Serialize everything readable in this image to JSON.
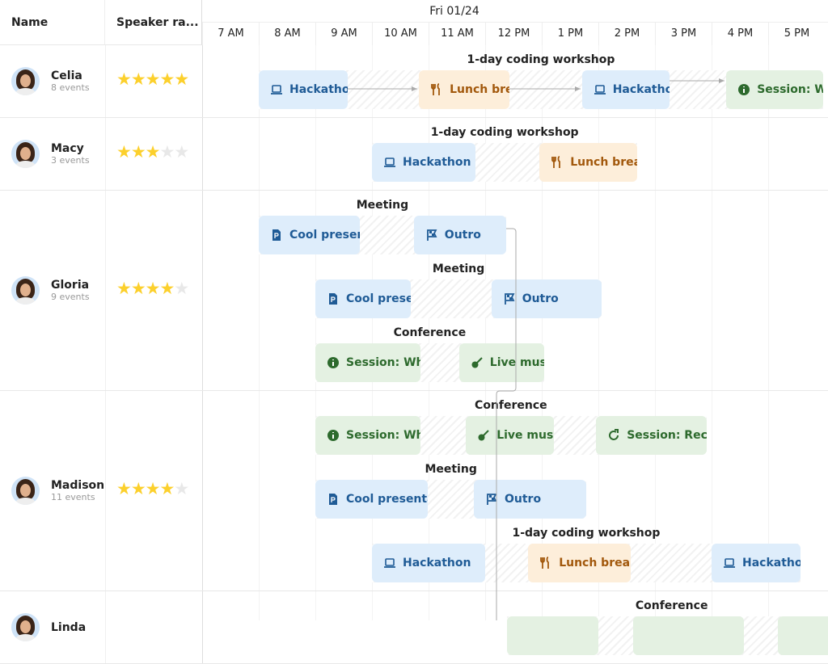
{
  "header": {
    "name_col": "Name",
    "rating_col": "Speaker ra...",
    "date": "Fri 01/24",
    "hours": [
      "7 AM",
      "8 AM",
      "9 AM",
      "10 AM",
      "11 AM",
      "12 PM",
      "1 PM",
      "2 PM",
      "3 PM",
      "4 PM",
      "5 PM"
    ]
  },
  "colors": {
    "blue": "#deedfb",
    "orange": "#fdeeda",
    "green": "#e4f1e2",
    "star": "#fcd02c"
  },
  "rows": [
    {
      "name": "Celia",
      "events": "8 events",
      "rating": 5,
      "groups": [
        {
          "label": "1-day coding workshop",
          "events": [
            {
              "label": "Hackathon",
              "icon": "laptop-icon",
              "color": "blue",
              "start": 8.0,
              "end": 9.57
            },
            {
              "label": "Lunch break",
              "icon": "utensils-icon",
              "color": "orange",
              "start": 10.83,
              "end": 12.43
            },
            {
              "label": "Hackathon",
              "icon": "laptop-icon",
              "color": "blue",
              "start": 13.71,
              "end": 15.26
            },
            {
              "label": "Session: W",
              "icon": "info-icon",
              "color": "green",
              "start": 16.26,
              "end": 17.97
            }
          ]
        }
      ]
    },
    {
      "name": "Macy",
      "events": "3 events",
      "rating": 3,
      "groups": [
        {
          "label": "1-day coding workshop",
          "events": [
            {
              "label": "Hackathon",
              "icon": "laptop-icon",
              "color": "blue",
              "start": 10.0,
              "end": 11.83
            },
            {
              "label": "Lunch break",
              "icon": "utensils-icon",
              "color": "orange",
              "start": 12.96,
              "end": 14.69
            }
          ]
        }
      ]
    },
    {
      "name": "Gloria",
      "events": "9 events",
      "rating": 4,
      "groups": [
        {
          "label": "Meeting",
          "events": [
            {
              "label": "Cool presentation",
              "icon": "file-icon",
              "color": "blue",
              "start": 8.0,
              "end": 9.79
            },
            {
              "label": "Outro",
              "icon": "flag-icon",
              "color": "blue",
              "start": 10.74,
              "end": 12.37
            }
          ]
        },
        {
          "label": "Meeting",
          "events": [
            {
              "label": "Cool presentation",
              "icon": "file-icon",
              "color": "blue",
              "start": 9.0,
              "end": 10.69
            },
            {
              "label": "Outro",
              "icon": "flag-icon",
              "color": "blue",
              "start": 12.11,
              "end": 14.06
            }
          ]
        },
        {
          "label": "Conference",
          "events": [
            {
              "label": "Session: Wh",
              "icon": "info-icon",
              "color": "green",
              "start": 9.0,
              "end": 10.86
            },
            {
              "label": "Live music",
              "icon": "guitar-icon",
              "color": "green",
              "start": 11.54,
              "end": 13.04
            }
          ]
        }
      ]
    },
    {
      "name": "Madison",
      "events": "11 events",
      "rating": 4,
      "groups": [
        {
          "label": "Conference",
          "events": [
            {
              "label": "Session: Wh",
              "icon": "info-icon",
              "color": "green",
              "start": 9.0,
              "end": 10.86
            },
            {
              "label": "Live music",
              "icon": "guitar-icon",
              "color": "green",
              "start": 11.66,
              "end": 13.21
            },
            {
              "label": "Session: Rec",
              "icon": "refresh-icon",
              "color": "green",
              "start": 13.96,
              "end": 15.91
            }
          ]
        },
        {
          "label": "Meeting",
          "events": [
            {
              "label": "Cool presentation",
              "icon": "file-icon",
              "color": "blue",
              "start": 9.0,
              "end": 10.99
            },
            {
              "label": "Outro",
              "icon": "flag-icon",
              "color": "blue",
              "start": 11.8,
              "end": 13.79
            }
          ]
        },
        {
          "label": "1-day coding workshop",
          "events": [
            {
              "label": "Hackathon",
              "icon": "laptop-icon",
              "color": "blue",
              "start": 10.0,
              "end": 12.0
            },
            {
              "label": "Lunch break",
              "icon": "utensils-icon",
              "color": "orange",
              "start": 12.76,
              "end": 14.57
            },
            {
              "label": "Hackathon",
              "icon": "laptop-icon",
              "color": "blue",
              "start": 16.0,
              "end": 17.57
            }
          ]
        }
      ]
    },
    {
      "name": "Linda",
      "events": "",
      "rating": 0,
      "groups": [
        {
          "label": "Conference",
          "events": [
            {
              "label": "",
              "icon": "",
              "color": "green",
              "start": 12.39,
              "end": 14.0
            },
            {
              "label": "",
              "icon": "",
              "color": "green",
              "start": 14.61,
              "end": 16.57
            },
            {
              "label": "",
              "icon": "",
              "color": "green",
              "start": 17.17,
              "end": 18.2
            }
          ]
        }
      ]
    }
  ]
}
